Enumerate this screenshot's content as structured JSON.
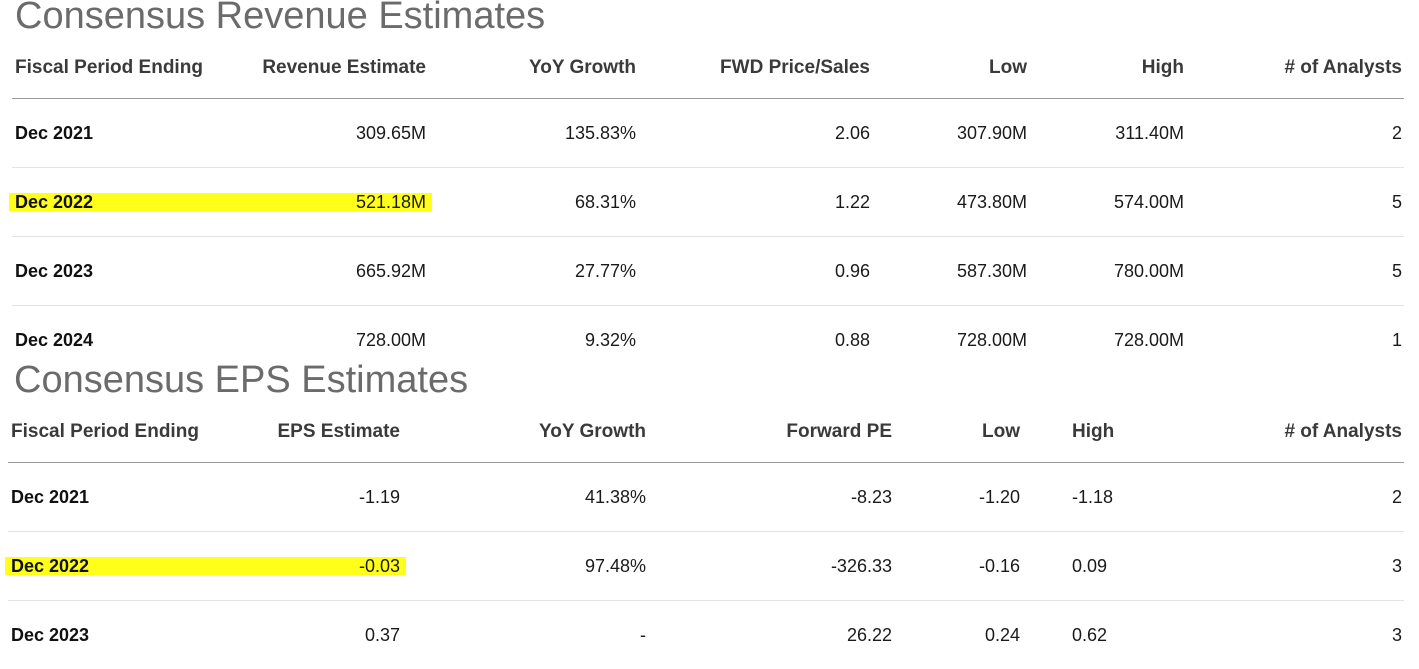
{
  "revenue": {
    "title": "Consensus Revenue Estimates",
    "columns": [
      "Fiscal Period Ending",
      "Revenue Estimate",
      "YoY Growth",
      "FWD Price/Sales",
      "Low",
      "High",
      "# of Analysts"
    ],
    "rows": [
      {
        "period": "Dec 2021",
        "estimate": "309.65M",
        "yoy": "135.83%",
        "ratio": "2.06",
        "low": "307.90M",
        "high": "311.40M",
        "analysts": "2",
        "highlighted": false
      },
      {
        "period": "Dec 2022",
        "estimate": "521.18M",
        "yoy": "68.31%",
        "ratio": "1.22",
        "low": "473.80M",
        "high": "574.00M",
        "analysts": "5",
        "highlighted": true
      },
      {
        "period": "Dec 2023",
        "estimate": "665.92M",
        "yoy": "27.77%",
        "ratio": "0.96",
        "low": "587.30M",
        "high": "780.00M",
        "analysts": "5",
        "highlighted": false
      },
      {
        "period": "Dec 2024",
        "estimate": "728.00M",
        "yoy": "9.32%",
        "ratio": "0.88",
        "low": "728.00M",
        "high": "728.00M",
        "analysts": "1",
        "highlighted": false
      }
    ]
  },
  "eps": {
    "title": "Consensus EPS Estimates",
    "columns": [
      "Fiscal Period Ending",
      "EPS Estimate",
      "YoY Growth",
      "Forward PE",
      "Low",
      "High",
      "# of Analysts"
    ],
    "rows": [
      {
        "period": "Dec 2021",
        "estimate": "-1.19",
        "yoy": "41.38%",
        "ratio": "-8.23",
        "low": "-1.20",
        "high": "-1.18",
        "analysts": "2",
        "highlighted": false
      },
      {
        "period": "Dec 2022",
        "estimate": "-0.03",
        "yoy": "97.48%",
        "ratio": "-326.33",
        "low": "-0.16",
        "high": "0.09",
        "analysts": "3",
        "highlighted": true
      },
      {
        "period": "Dec 2023",
        "estimate": "0.37",
        "yoy": "-",
        "ratio": "26.22",
        "low": "0.24",
        "high": "0.62",
        "analysts": "3",
        "highlighted": false
      }
    ]
  },
  "colors": {
    "highlight": "#ffff1a",
    "title": "#6b6b6b",
    "header_rule": "#9a9a9a",
    "row_rule": "#e3e3e3"
  }
}
